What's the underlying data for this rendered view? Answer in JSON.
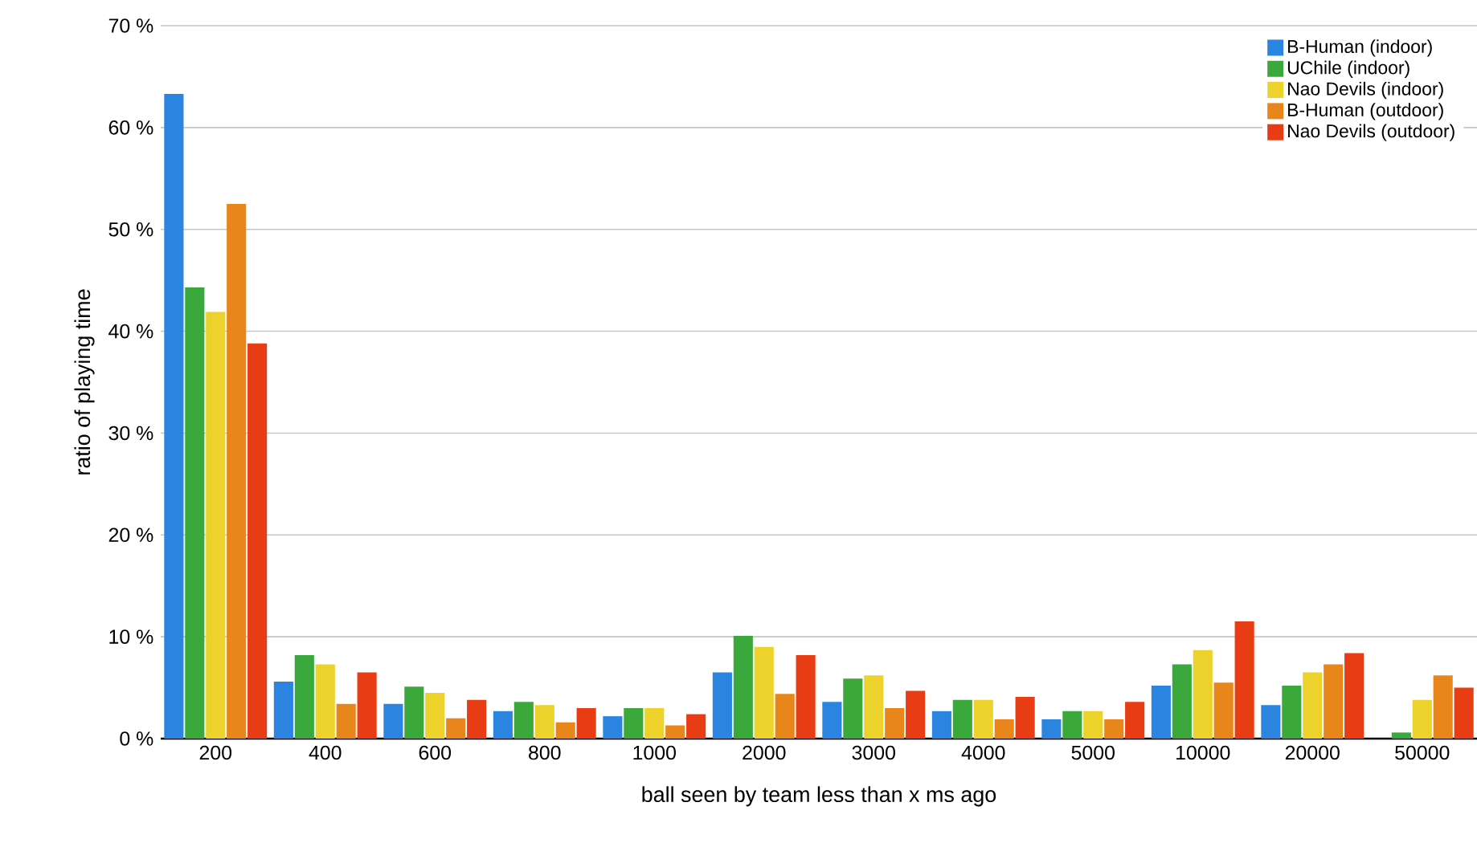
{
  "chart_data": {
    "type": "bar",
    "xlabel": "ball seen by team less than x ms ago",
    "ylabel": "ratio of playing time",
    "categories": [
      "200",
      "400",
      "600",
      "800",
      "1000",
      "2000",
      "3000",
      "4000",
      "5000",
      "10000",
      "20000",
      "50000"
    ],
    "series": [
      {
        "name": "B-Human (indoor)",
        "color": "#2a84e0",
        "values": [
          63.3,
          5.6,
          3.4,
          2.7,
          2.2,
          6.5,
          3.6,
          2.7,
          1.9,
          5.2,
          3.3,
          0
        ]
      },
      {
        "name": "UChile (indoor)",
        "color": "#3aa83a",
        "values": [
          44.3,
          8.2,
          5.1,
          3.6,
          3.0,
          10.1,
          5.9,
          3.8,
          2.7,
          7.3,
          5.2,
          0.6
        ]
      },
      {
        "name": "Nao Devils (indoor)",
        "color": "#ecd22a",
        "values": [
          41.9,
          7.3,
          4.5,
          3.3,
          3.0,
          9.0,
          6.2,
          3.8,
          2.7,
          8.7,
          6.5,
          3.8
        ]
      },
      {
        "name": "B-Human (outdoor)",
        "color": "#e8861c",
        "values": [
          52.5,
          3.4,
          2.0,
          1.6,
          1.3,
          4.4,
          3.0,
          1.9,
          1.9,
          5.5,
          7.3,
          6.2
        ]
      },
      {
        "name": "Nao Devils (outdoor)",
        "color": "#e83c14",
        "values": [
          38.8,
          6.5,
          3.8,
          3.0,
          2.4,
          8.2,
          4.7,
          4.1,
          3.6,
          11.5,
          8.4,
          5.0
        ]
      }
    ],
    "ylim": [
      0,
      70
    ],
    "yticks": [
      {
        "value": 0,
        "label": "0 %"
      },
      {
        "value": 10,
        "label": "10 %"
      },
      {
        "value": 20,
        "label": "20 %"
      },
      {
        "value": 30,
        "label": "30 %"
      },
      {
        "value": 40,
        "label": "40 %"
      },
      {
        "value": 50,
        "label": "50 %"
      },
      {
        "value": 60,
        "label": "60 %"
      },
      {
        "value": 70,
        "label": "70 %"
      }
    ],
    "grid": "y",
    "legend": "top right"
  }
}
